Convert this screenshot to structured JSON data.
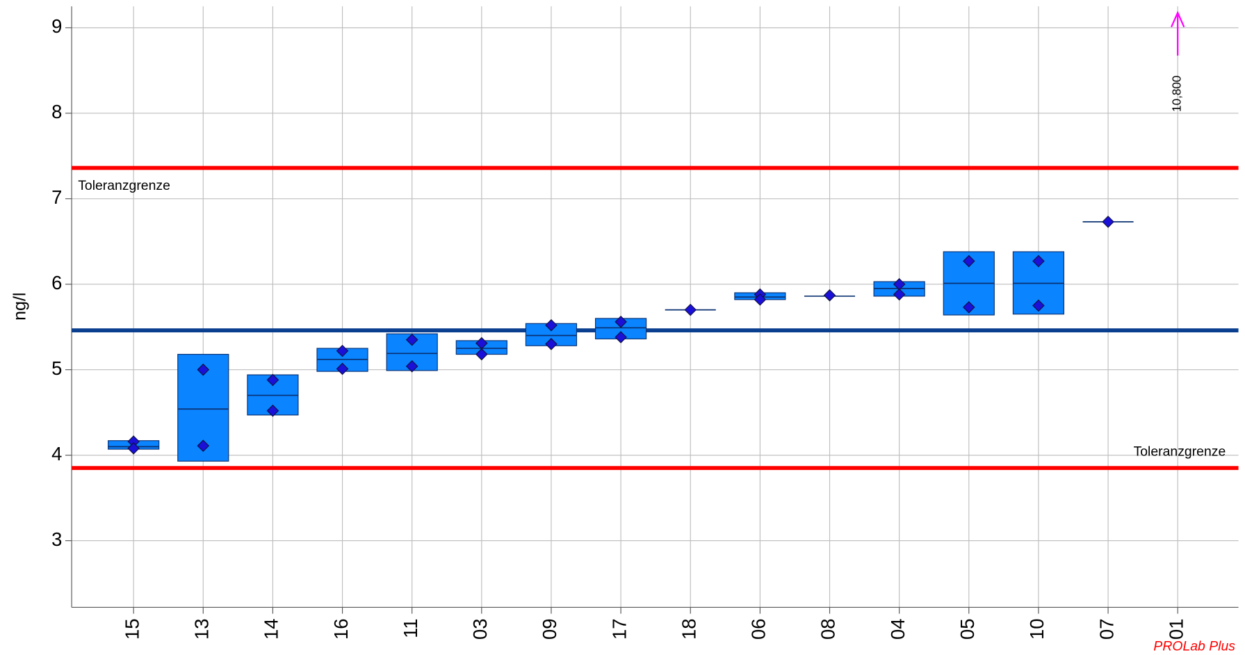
{
  "chart_data": {
    "type": "box",
    "y_label": "ng/l",
    "ylim": [
      2.22,
      9.25
    ],
    "yticks": [
      3,
      4,
      5,
      6,
      7,
      8,
      9
    ],
    "grid": true,
    "box_color": "#0a84ff",
    "point_color": "#1a10d8",
    "off_scale_color": "#ff00ff",
    "reference_lines": [
      {
        "value": 7.36,
        "label": "Toleranzgrenze",
        "color": "#ff0000"
      },
      {
        "value": 5.46,
        "color": "#0a3f8f"
      },
      {
        "value": 3.85,
        "label": "Toleranzgrenze",
        "color": "#ff0000"
      }
    ],
    "labs": [
      {
        "name": "15",
        "low": 4.07,
        "high": 4.17,
        "median": 4.1,
        "values": [
          4.16,
          4.08
        ]
      },
      {
        "name": "13",
        "low": 3.93,
        "high": 5.18,
        "median": 4.54,
        "values": [
          5.0,
          4.11
        ]
      },
      {
        "name": "14",
        "low": 4.47,
        "high": 4.94,
        "median": 4.7,
        "values": [
          4.88,
          4.52
        ]
      },
      {
        "name": "16",
        "low": 4.98,
        "high": 5.25,
        "median": 5.12,
        "values": [
          5.22,
          5.01
        ]
      },
      {
        "name": "11",
        "low": 4.99,
        "high": 5.42,
        "median": 5.19,
        "values": [
          5.35,
          5.04
        ]
      },
      {
        "name": "03",
        "low": 5.18,
        "high": 5.34,
        "median": 5.25,
        "values": [
          5.31,
          5.18
        ]
      },
      {
        "name": "09",
        "low": 5.28,
        "high": 5.54,
        "median": 5.4,
        "values": [
          5.52,
          5.3
        ]
      },
      {
        "name": "17",
        "low": 5.36,
        "high": 5.6,
        "median": 5.49,
        "values": [
          5.56,
          5.38
        ]
      },
      {
        "name": "18",
        "low": 5.7,
        "high": 5.7,
        "median": 5.7,
        "values": [
          5.7
        ]
      },
      {
        "name": "06",
        "low": 5.82,
        "high": 5.9,
        "median": 5.85,
        "values": [
          5.88,
          5.82
        ]
      },
      {
        "name": "08",
        "low": 5.86,
        "high": 5.86,
        "median": 5.86,
        "values": [
          5.87
        ]
      },
      {
        "name": "04",
        "low": 5.86,
        "high": 6.03,
        "median": 5.95,
        "values": [
          6.0,
          5.88
        ]
      },
      {
        "name": "05",
        "low": 5.64,
        "high": 6.38,
        "median": 6.01,
        "values": [
          6.27,
          5.73
        ]
      },
      {
        "name": "10",
        "low": 5.65,
        "high": 6.38,
        "median": 6.01,
        "values": [
          6.27,
          5.75
        ]
      },
      {
        "name": "07",
        "low": 6.73,
        "high": 6.73,
        "median": 6.73,
        "values": [
          6.73
        ]
      },
      {
        "name": "01",
        "values": [
          10.8
        ],
        "value_labels": [
          "10,800"
        ]
      }
    ],
    "watermark": "PROLab Plus"
  }
}
